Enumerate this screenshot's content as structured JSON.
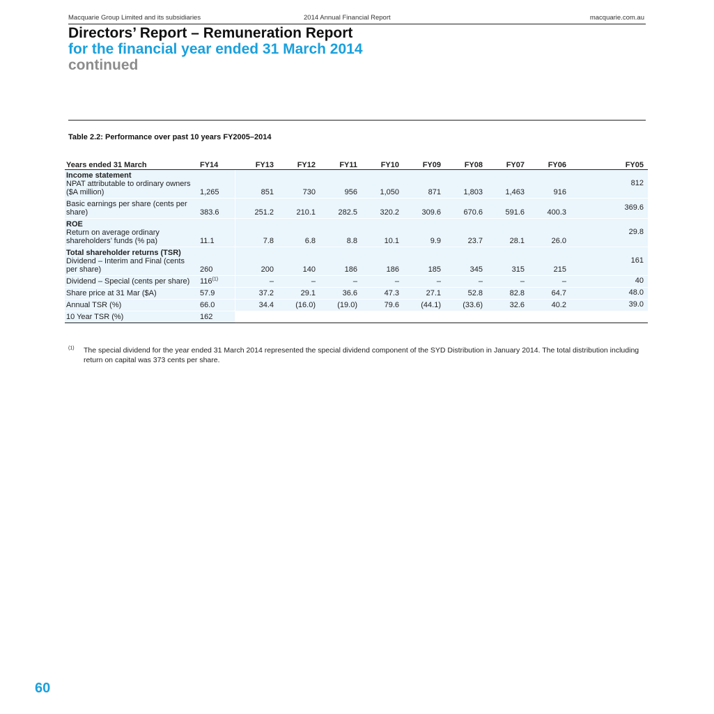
{
  "header": {
    "left": "Macquarie Group Limited and its subsidiaries",
    "center": "2014 Annual Financial Report",
    "right": "macquarie.com.au"
  },
  "title": {
    "line1": "Directors’ Report – Remuneration Report",
    "line2": "for the financial year ended 31 March 2014",
    "line3": "continued"
  },
  "table": {
    "caption": "Table 2.2: Performance over past 10 years FY2005–2014",
    "header_label": "Years ended 31 March",
    "years": [
      "FY14",
      "FY13",
      "FY12",
      "FY11",
      "FY10",
      "FY09",
      "FY08",
      "FY07",
      "FY06",
      "FY05"
    ],
    "rows": [
      {
        "section": "Income statement",
        "label": "NPAT attributable to ordinary owners ($A million)",
        "values": [
          "1,265",
          "851",
          "730",
          "956",
          "1,050",
          "871",
          "1,803",
          "1,463",
          "916",
          "812"
        ]
      },
      {
        "section": "",
        "label": "Basic earnings per share (cents per share)",
        "values": [
          "383.6",
          "251.2",
          "210.1",
          "282.5",
          "320.2",
          "309.6",
          "670.6",
          "591.6",
          "400.3",
          "369.6"
        ]
      },
      {
        "section": "ROE",
        "label": "Return on average ordinary shareholders’ funds (% pa)",
        "values": [
          "11.1",
          "7.8",
          "6.8",
          "8.8",
          "10.1",
          "9.9",
          "23.7",
          "28.1",
          "26.0",
          "29.8"
        ]
      },
      {
        "section": "Total shareholder returns (TSR)",
        "label": "Dividend – Interim and Final (cents per share)",
        "values": [
          "260",
          "200",
          "140",
          "186",
          "186",
          "185",
          "345",
          "315",
          "215",
          "161"
        ]
      },
      {
        "section": "",
        "label": "Dividend – Special (cents per share)",
        "values": [
          "116",
          "–",
          "–",
          "–",
          "–",
          "–",
          "–",
          "–",
          "–",
          "40"
        ],
        "first_note": "(1)"
      },
      {
        "section": "",
        "label": "Share price at 31 Mar ($A)",
        "values": [
          "57.9",
          "37.2",
          "29.1",
          "36.6",
          "47.3",
          "27.1",
          "52.8",
          "82.8",
          "64.7",
          "48.0"
        ]
      },
      {
        "section": "",
        "label": "Annual TSR (%)",
        "values": [
          "66.0",
          "34.4",
          "(16.0)",
          "(19.0)",
          "79.6",
          "(44.1)",
          "(33.6)",
          "32.6",
          "40.2",
          "39.0"
        ]
      },
      {
        "section": "",
        "label": "10 Year TSR (%)",
        "values": [
          "162",
          "",
          "",
          "",
          "",
          "",
          "",
          "",
          "",
          ""
        ]
      }
    ]
  },
  "footnote": {
    "marker": "(1)",
    "text": "The special dividend for the year ended 31 March 2014 represented the special dividend component of the SYD Distribution in January 2014. The total distribution including return on capital was 373 cents per share."
  },
  "page_number": "60",
  "colors": {
    "accent": "#1aa0dc",
    "muted": "#8c8c8c",
    "row_fill": "#eaf5fc"
  }
}
